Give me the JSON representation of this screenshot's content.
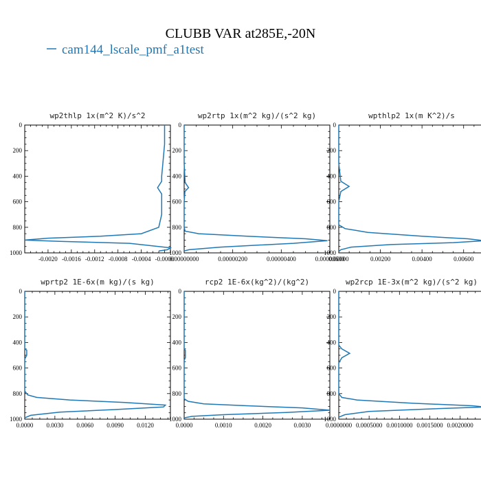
{
  "figure": {
    "title": "CLUBB VAR at285E,-20N",
    "legend": [
      {
        "name": "cam144_lscale_pmf_a1test",
        "color": "#1f77b4"
      }
    ]
  },
  "chart_data": [
    {
      "type": "line",
      "title": "wp2thlp  1x(m^2 K)/s^2",
      "xlim": [
        -0.0024,
        0.0001
      ],
      "ylim": [
        1000,
        0
      ],
      "xticks": [
        -0.002,
        -0.0016,
        -0.0012,
        -0.0008,
        -0.0004,
        0.0
      ],
      "xtick_labels": [
        "-0.0020",
        "-0.0016",
        "-0.0012",
        "-0.0008",
        "-0.0004",
        "-0.0000"
      ],
      "yticks": [
        0,
        200,
        400,
        600,
        800,
        1000
      ],
      "ytick_labels": [
        "0",
        "200",
        "400",
        "600",
        "800",
        "1000"
      ],
      "series": [
        {
          "x": [
            0.0,
            0.0,
            -3e-05,
            -5e-05,
            -5e-05,
            -0.00012,
            -5e-05,
            -5e-05,
            -5e-05,
            -0.0001,
            -0.0004,
            -0.0011,
            -0.002,
            -0.0024,
            -0.0018,
            -0.0006,
            0.0001,
            5e-05,
            -0.0001
          ],
          "y": [
            0,
            150,
            300,
            400,
            440,
            490,
            540,
            600,
            700,
            800,
            850,
            870,
            885,
            900,
            910,
            925,
            960,
            975,
            985
          ]
        }
      ]
    },
    {
      "type": "line",
      "title": "wp2rtp  1x(m^2 kg)/(s^2 kg)",
      "xlim": [
        0.0,
        6e-06
      ],
      "ylim": [
        1000,
        0
      ],
      "xticks": [
        0.0,
        2e-06,
        4e-06,
        6e-06
      ],
      "xtick_labels": [
        "0.00000000",
        "0.00000200",
        "0.00000400",
        "0.00000600"
      ],
      "yticks": [
        0,
        200,
        400,
        600,
        800,
        1000
      ],
      "ytick_labels": [
        "0",
        "200",
        "400",
        "600",
        "800",
        "1000"
      ],
      "series": [
        {
          "x": [
            0.0,
            0.0,
            4e-08,
            1.8e-07,
            3e-08,
            0.0,
            0.0,
            4e-08,
            6e-07,
            2.6e-06,
            5e-06,
            5.9e-06,
            4.5e-06,
            1.5e-06,
            2e-07,
            0.0
          ],
          "y": [
            0,
            300,
            450,
            490,
            520,
            600,
            800,
            830,
            850,
            870,
            890,
            905,
            925,
            955,
            975,
            985
          ]
        }
      ]
    },
    {
      "type": "line",
      "title": "wpthlp2  1x(m K^2)/s",
      "xlim": [
        0.0,
        0.007
      ],
      "ylim": [
        1000,
        0
      ],
      "xticks": [
        0.0,
        0.002,
        0.004,
        0.006
      ],
      "xtick_labels": [
        "0.00000",
        "0.00200",
        "0.00400",
        "0.00600"
      ],
      "yticks": [
        0,
        200,
        400,
        600,
        800,
        1000
      ],
      "ytick_labels": [
        "0",
        "200",
        "400",
        "600",
        "800",
        "1000"
      ],
      "series": [
        {
          "x": [
            0.0,
            0.0,
            0.0001,
            0.0005,
            0.0001,
            0.0,
            0.0,
            0.0003,
            0.0014,
            0.004,
            0.0062,
            0.007,
            0.0055,
            0.0025,
            0.0006,
            0.0001,
            0.0
          ],
          "y": [
            0,
            300,
            440,
            480,
            520,
            600,
            780,
            810,
            840,
            870,
            890,
            905,
            920,
            935,
            955,
            975,
            990
          ]
        }
      ]
    },
    {
      "type": "line",
      "title": "wprtp2  1E-6x(m kg)/(s kg)",
      "xlim": [
        0.0,
        0.0145
      ],
      "ylim": [
        1000,
        0
      ],
      "xticks": [
        0.0,
        0.003,
        0.006,
        0.009,
        0.012
      ],
      "xtick_labels": [
        "0.0000",
        "0.0030",
        "0.0060",
        "0.0090",
        "0.0120"
      ],
      "yticks": [
        0,
        200,
        400,
        600,
        800,
        1000
      ],
      "ytick_labels": [
        "0",
        "200",
        "400",
        "600",
        "800",
        "1000"
      ],
      "series": [
        {
          "x": [
            0.0,
            0.0,
            0.0002,
            0.0002,
            0.0,
            0.0,
            0.0003,
            0.0012,
            0.0045,
            0.01,
            0.014,
            0.0138,
            0.009,
            0.0035,
            0.0006,
            0.0
          ],
          "y": [
            0,
            450,
            460,
            500,
            530,
            780,
            810,
            830,
            850,
            870,
            890,
            905,
            925,
            945,
            970,
            990
          ]
        }
      ]
    },
    {
      "type": "line",
      "title": "rcp2  1E-6x(kg^2)/(kg^2)",
      "xlim": [
        0.0,
        0.0037
      ],
      "ylim": [
        1000,
        0
      ],
      "xticks": [
        0.0,
        0.001,
        0.002,
        0.003
      ],
      "xtick_labels": [
        "0.0000",
        "0.0010",
        "0.0020",
        "0.0030"
      ],
      "yticks": [
        0,
        200,
        400,
        600,
        800,
        1000
      ],
      "ytick_labels": [
        "0",
        "200",
        "400",
        "600",
        "800",
        "1000"
      ],
      "series": [
        {
          "x": [
            0.0,
            0.0,
            3e-05,
            3e-05,
            0.0,
            0.0,
            0.0001,
            0.0005,
            0.0016,
            0.003,
            0.0037,
            0.0026,
            0.001,
            0.0002,
            0.0
          ],
          "y": [
            0,
            450,
            460,
            520,
            540,
            840,
            860,
            880,
            895,
            912,
            930,
            948,
            965,
            978,
            990
          ]
        }
      ]
    },
    {
      "type": "line",
      "title": "wp2rcp  1E-3x(m^2 kg)/(s^2 kg)",
      "xlim": [
        0.0,
        0.0024
      ],
      "ylim": [
        1000,
        0
      ],
      "xticks": [
        0.0,
        0.0005,
        0.001,
        0.0015,
        0.002
      ],
      "xtick_labels": [
        "0.0000000",
        "0.0005000",
        "0.0010000",
        "0.0015000",
        "0.0020000"
      ],
      "yticks": [
        0,
        200,
        400,
        600,
        800,
        1000
      ],
      "ytick_labels": [
        "0",
        "200",
        "400",
        "600",
        "800",
        "1000"
      ],
      "series": [
        {
          "x": [
            0.0,
            0.0,
            5e-05,
            0.00018,
            5e-05,
            0.0,
            0.0,
            5e-05,
            0.0003,
            0.0012,
            0.0022,
            0.0024,
            0.0015,
            0.0005,
            0.0001,
            0.0
          ],
          "y": [
            0,
            420,
            450,
            485,
            520,
            560,
            800,
            830,
            850,
            875,
            895,
            905,
            920,
            940,
            965,
            985
          ]
        }
      ]
    }
  ]
}
